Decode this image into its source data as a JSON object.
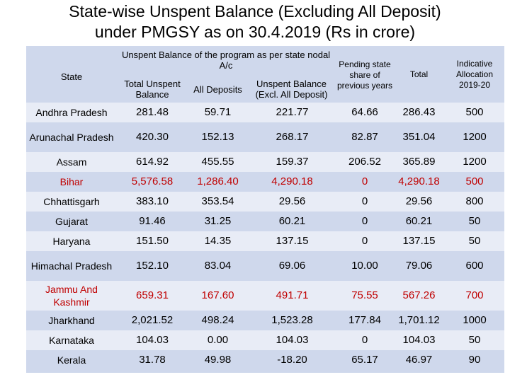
{
  "title_line1": "State-wise Unspent Balance (Excluding All Deposit)",
  "title_line2": "under PMGSY as on 30.4.2019 (Rs in crore)",
  "headers": {
    "state": "State",
    "group": "Unspent Balance of the program as per state nodal A/c",
    "total_unspent": "Total Unspent Balance",
    "all_deposits": "All Deposits",
    "unspent_excl": "Unspent Balance (Excl. All Deposit)",
    "pending_share": "Pending state share of previous years",
    "total": "Total",
    "indicative": "Indicative Allocation 2019-20"
  },
  "rows": [
    {
      "state": "Andhra Pradesh",
      "total_unspent": "281.48",
      "all_deposits": "59.71",
      "unspent_excl": "221.77",
      "pending_share": "64.66",
      "total": "286.43",
      "indicative": "500",
      "highlight": false
    },
    {
      "state": "Arunachal Pradesh",
      "total_unspent": "420.30",
      "all_deposits": "152.13",
      "unspent_excl": "268.17",
      "pending_share": "82.87",
      "total": "351.04",
      "indicative": "1200",
      "highlight": false
    },
    {
      "state": "Assam",
      "total_unspent": "614.92",
      "all_deposits": "455.55",
      "unspent_excl": "159.37",
      "pending_share": "206.52",
      "total": "365.89",
      "indicative": "1200",
      "highlight": false
    },
    {
      "state": "Bihar",
      "total_unspent": "5,576.58",
      "all_deposits": "1,286.40",
      "unspent_excl": "4,290.18",
      "pending_share": "0",
      "total": "4,290.18",
      "indicative": "500",
      "highlight": true
    },
    {
      "state": "Chhattisgarh",
      "total_unspent": "383.10",
      "all_deposits": "353.54",
      "unspent_excl": "29.56",
      "pending_share": "0",
      "total": "29.56",
      "indicative": "800",
      "highlight": false
    },
    {
      "state": "Gujarat",
      "total_unspent": "91.46",
      "all_deposits": "31.25",
      "unspent_excl": "60.21",
      "pending_share": "0",
      "total": "60.21",
      "indicative": "50",
      "highlight": false
    },
    {
      "state": "Haryana",
      "total_unspent": "151.50",
      "all_deposits": "14.35",
      "unspent_excl": "137.15",
      "pending_share": "0",
      "total": "137.15",
      "indicative": "50",
      "highlight": false
    },
    {
      "state": "Himachal Pradesh",
      "total_unspent": "152.10",
      "all_deposits": "83.04",
      "unspent_excl": "69.06",
      "pending_share": "10.00",
      "total": "79.06",
      "indicative": "600",
      "highlight": false
    },
    {
      "state": "Jammu And Kashmir",
      "total_unspent": "659.31",
      "all_deposits": "167.60",
      "unspent_excl": "491.71",
      "pending_share": "75.55",
      "total": "567.26",
      "indicative": "700",
      "highlight": true
    },
    {
      "state": "Jharkhand",
      "total_unspent": "2,021.52",
      "all_deposits": "498.24",
      "unspent_excl": "1,523.28",
      "pending_share": "177.84",
      "total": "1,701.12",
      "indicative": "1000",
      "highlight": false
    },
    {
      "state": "Karnataka",
      "total_unspent": "104.03",
      "all_deposits": "0.00",
      "unspent_excl": "104.03",
      "pending_share": "0",
      "total": "104.03",
      "indicative": "50",
      "highlight": false
    },
    {
      "state": "Kerala",
      "total_unspent": "31.78",
      "all_deposits": "49.98",
      "unspent_excl": "-18.20",
      "pending_share": "65.17",
      "total": "46.97",
      "indicative": "90",
      "highlight": false
    }
  ],
  "colors": {
    "header_bg": "#cfd8ec",
    "row_alt": "#e8ecf6",
    "highlight": "#c00000"
  }
}
